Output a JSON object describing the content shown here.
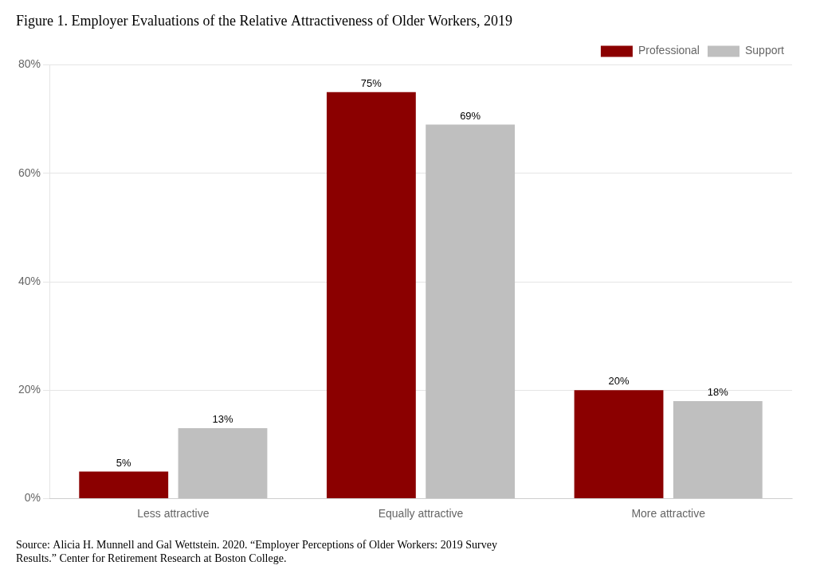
{
  "chart_data": {
    "type": "bar",
    "title": "Figure 1. Employer Evaluations of the Relative Attractiveness of Older Workers, 2019",
    "annotations": [
      "Source: Alicia H. Munnell and Gal Wettstein. 2020. “Employer Perceptions of Older Workers: 2019 Survey\nResults.” Center for Retirement Research at Boston College."
    ],
    "categories": [
      "Less attractive",
      "Equally attractive",
      "More attractive"
    ],
    "series": [
      {
        "name": "Professional",
        "color": "#8B0000",
        "values": [
          5,
          75,
          20
        ],
        "value_labels": [
          "5%",
          "75%",
          "20%"
        ]
      },
      {
        "name": "Support",
        "color": "#BFBFBF",
        "values": [
          13,
          69,
          18
        ],
        "value_labels": [
          "13%",
          "69%",
          "18%"
        ]
      }
    ],
    "ylim": [
      0,
      80
    ],
    "yticks": [
      {
        "value": 0,
        "label": "0%"
      },
      {
        "value": 20,
        "label": "20%"
      },
      {
        "value": 40,
        "label": "40%"
      },
      {
        "value": 60,
        "label": "60%"
      },
      {
        "value": 80,
        "label": "80%"
      }
    ],
    "grid": true,
    "legend": "upper right",
    "data_labels": true
  }
}
